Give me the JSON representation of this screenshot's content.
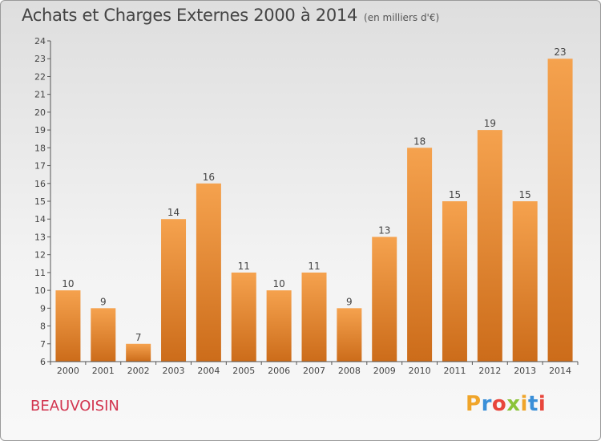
{
  "header": {
    "title": "Achats et Charges Externes 2000 à 2014",
    "subtitle": "(en milliers d'€)"
  },
  "footer": {
    "location": "BEAUVOISIN",
    "logo": "Proxiti"
  },
  "colors": {
    "bar_light": "#f5a24e",
    "bar_dark": "#cc6c1a",
    "location": "#d2354f",
    "logo_letters": [
      "#f0a52a",
      "#3a8fd8",
      "#e8463c",
      "#8cc43a",
      "#f0a52a",
      "#3a8fd8",
      "#e8463c"
    ]
  },
  "chart_data": {
    "type": "bar",
    "title": "Achats et Charges Externes 2000 à 2014",
    "subtitle": "(en milliers d'€)",
    "categories": [
      "2000",
      "2001",
      "2002",
      "2003",
      "2004",
      "2005",
      "2006",
      "2007",
      "2008",
      "2009",
      "2010",
      "2011",
      "2012",
      "2013",
      "2014"
    ],
    "values": [
      10,
      9,
      7,
      14,
      16,
      11,
      10,
      11,
      9,
      13,
      18,
      15,
      19,
      15,
      23
    ],
    "ylim": [
      6,
      24
    ],
    "yticks": [
      6,
      7,
      8,
      9,
      10,
      11,
      12,
      13,
      14,
      15,
      16,
      17,
      18,
      19,
      20,
      21,
      22,
      23,
      24
    ],
    "xlabel": "",
    "ylabel": "",
    "grid": false,
    "data_labels": true
  }
}
